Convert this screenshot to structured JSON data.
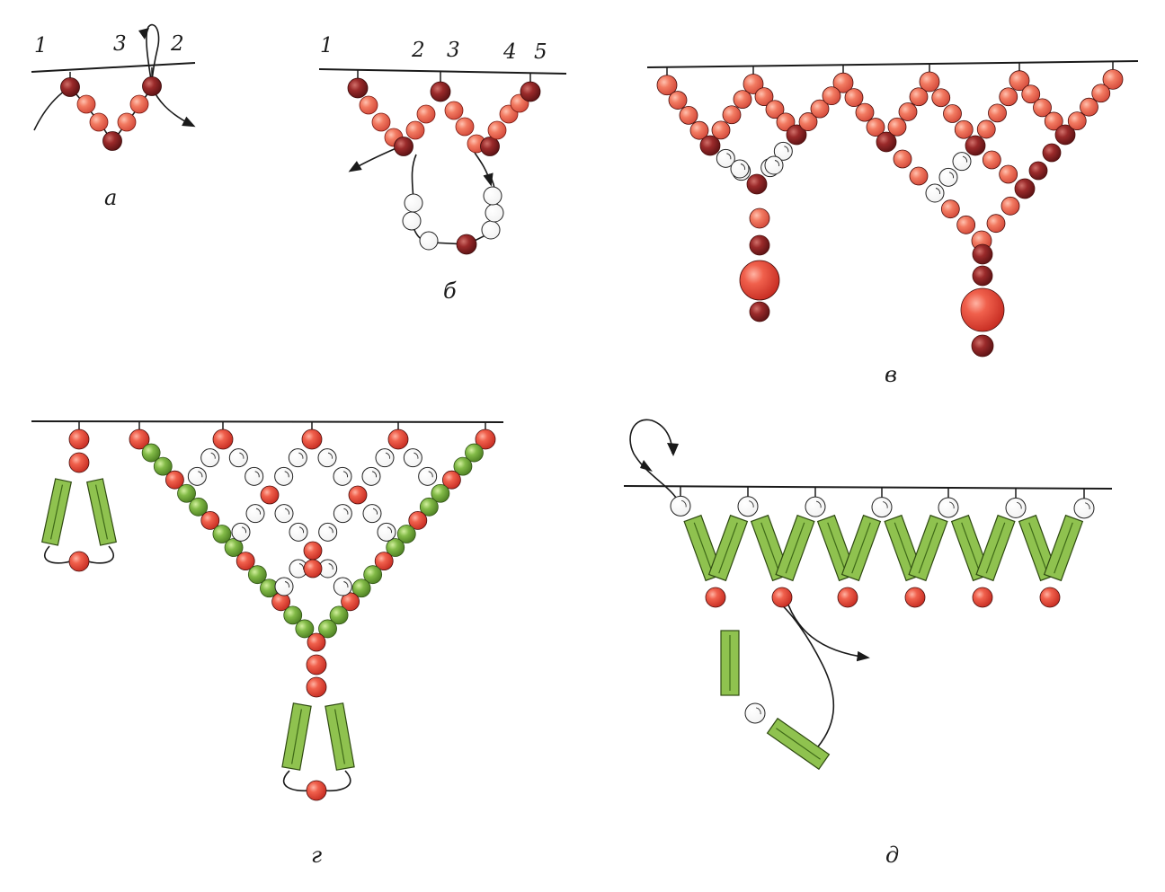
{
  "figure": {
    "panel_a": {
      "caption": "а",
      "point_labels": [
        "1",
        "3",
        "2"
      ]
    },
    "panel_b": {
      "caption": "б",
      "point_labels": [
        "1",
        "2",
        "3",
        "4",
        "5"
      ]
    },
    "panel_v": {
      "caption": "в"
    },
    "panel_g": {
      "caption": "г"
    },
    "panel_d": {
      "caption": "д"
    }
  },
  "colors": {
    "red_bead": "#e8483b",
    "coral_bead": "#ee6a55",
    "dark_bead": "#8e2224",
    "white_bead": "#ffffff",
    "green_bead": "#7cb542",
    "bugle": "#8fc24f",
    "thread": "#1a1a1a"
  }
}
